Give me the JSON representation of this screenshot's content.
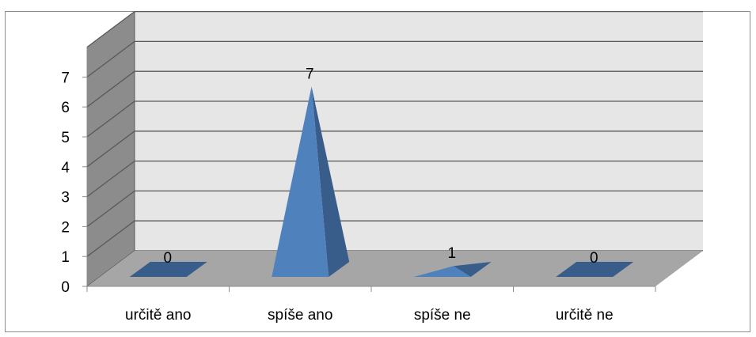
{
  "chart_data": {
    "type": "bar",
    "shape": "3d-pyramid",
    "categories": [
      "určitě ano",
      "spíše ano",
      "spíše ne",
      "určitě ne"
    ],
    "values": [
      0,
      7,
      1,
      0
    ],
    "data_labels": [
      "0",
      "7",
      "1",
      "0"
    ],
    "y_ticks": [
      "0",
      "1",
      "2",
      "3",
      "4",
      "5",
      "6",
      "7"
    ],
    "ylim": [
      0,
      7
    ],
    "grid": true,
    "legend": "none",
    "title": "",
    "xlabel": "",
    "ylabel": "",
    "colors": {
      "pyramid_front": "#4f81bd",
      "pyramid_side": "#385d8a",
      "back_wall": "#e6e6e6",
      "side_wall": "#8c8c8c",
      "floor": "#a6a6a6",
      "grid_line": "#595959"
    }
  }
}
